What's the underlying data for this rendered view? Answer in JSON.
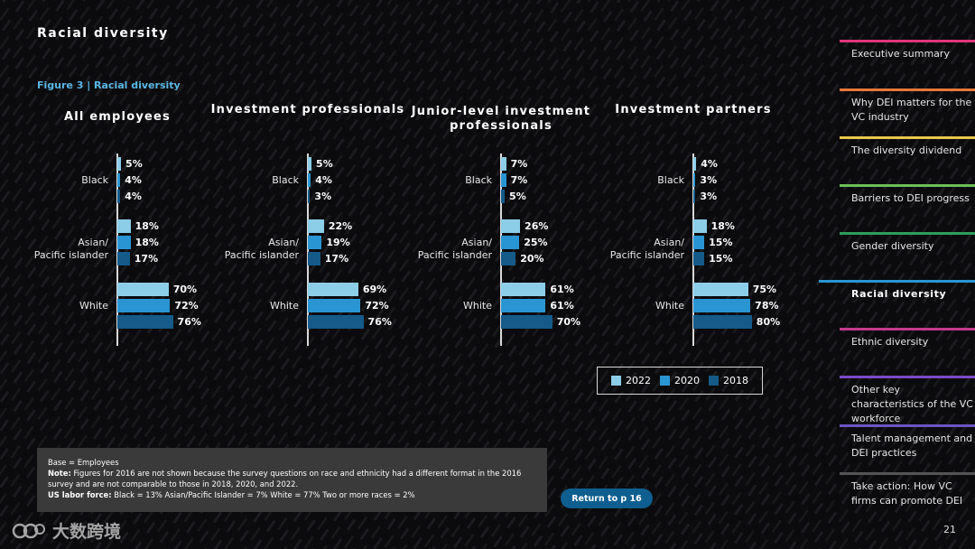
{
  "page": {
    "title": "Racial diversity",
    "figure_label": "Figure 3  |  Racial diversity",
    "page_number": "21"
  },
  "colors": {
    "y2022": "#8ccde8",
    "y2020": "#2a95d3",
    "y2018": "#155a89"
  },
  "chart_data": {
    "type": "bar",
    "orientation": "horizontal",
    "title": "Figure 3 | Racial diversity",
    "categories": [
      "Black",
      "Asian/\nPacific islander",
      "White"
    ],
    "series_names": [
      "2022",
      "2020",
      "2018"
    ],
    "unit": "%",
    "panels": [
      {
        "title": "All employees",
        "values": {
          "Black": [
            5,
            4,
            4
          ],
          "Asian/Pacific islander": [
            18,
            18,
            17
          ],
          "White": [
            70,
            72,
            76
          ]
        }
      },
      {
        "title": "Investment professionals",
        "values": {
          "Black": [
            5,
            4,
            3
          ],
          "Asian/Pacific islander": [
            22,
            19,
            17
          ],
          "White": [
            69,
            72,
            76
          ]
        }
      },
      {
        "title": "Junior-level investment professionals",
        "values": {
          "Black": [
            7,
            7,
            5
          ],
          "Asian/Pacific islander": [
            26,
            25,
            20
          ],
          "White": [
            61,
            61,
            70
          ]
        }
      },
      {
        "title": "Investment partners",
        "values": {
          "Black": [
            4,
            3,
            3
          ],
          "Asian/Pacific islander": [
            18,
            15,
            15
          ],
          "White": [
            75,
            78,
            80
          ]
        }
      }
    ]
  },
  "legend": {
    "items": [
      "2022",
      "2020",
      "2018"
    ]
  },
  "note": {
    "base": "Base = Employees",
    "note_label": "Note:",
    "note_text": "Figures for 2016 are not shown because the survey questions on race and ethnicity had a different format in the 2016 survey and are not comparable to those in 2018, 2020, and 2022.",
    "labor_label": "US labor force:",
    "labor_text": "Black = 13%   Asian/Pacific Islander = 7%  White = 77%  Two or more races = 2%"
  },
  "return_button": "Return to p 16",
  "nav": {
    "items": [
      {
        "label": "Executive summary",
        "color": "#e0367a"
      },
      {
        "label": "Why DEI matters for the VC industry",
        "color": "#e8763a"
      },
      {
        "label": "The diversity dividend",
        "color": "#e8c84a"
      },
      {
        "label": "Barriers to DEI progress",
        "color": "#6bbf59"
      },
      {
        "label": "Gender diversity",
        "color": "#2e9d5e"
      },
      {
        "label": "Racial diversity",
        "color": "#2a95d3"
      },
      {
        "label": "Ethnic diversity",
        "color": "#c23a8c"
      },
      {
        "label": "Other key characteristics of the VC workforce",
        "color": "#7a4bc9"
      },
      {
        "label": "Talent management and DEI practices",
        "color": "#6d54c4"
      },
      {
        "label": "Take action: How VC firms can promote DEI",
        "color": "#555555"
      }
    ]
  },
  "watermark": {
    "text": "大数跨境"
  }
}
